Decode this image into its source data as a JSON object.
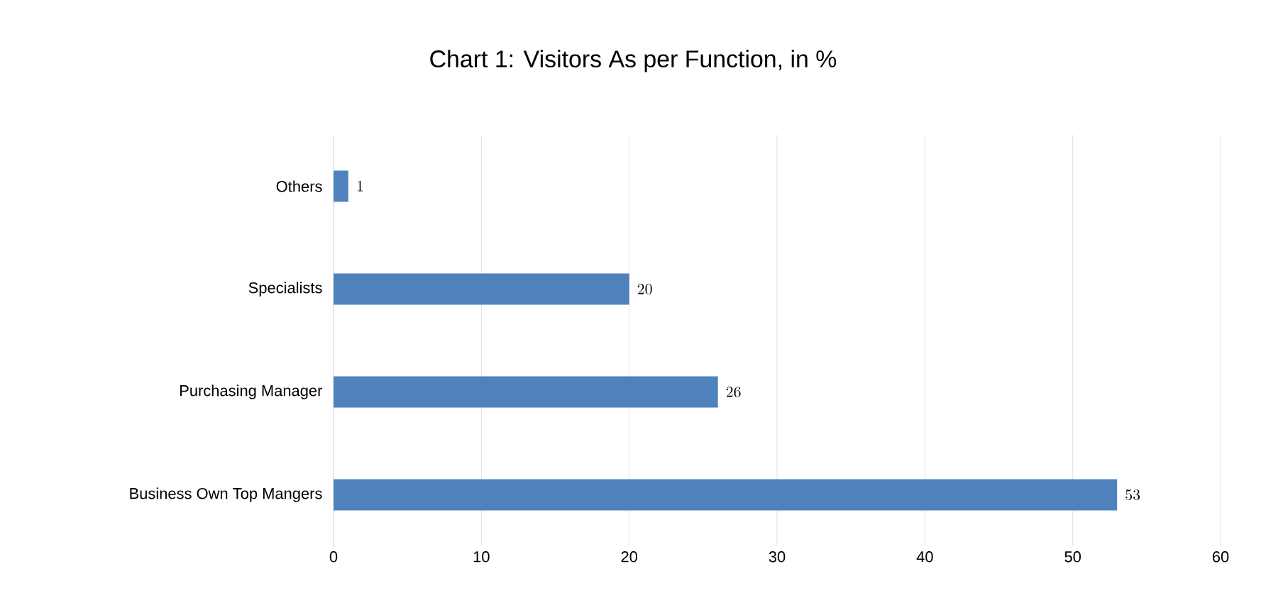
{
  "chart_data": {
    "type": "bar",
    "orientation": "horizontal",
    "title": "Chart 1: Visitors As per Function, in %",
    "categories": [
      "Others",
      "Specialists",
      "Purchasing Manager",
      "Business Own Top Mangers"
    ],
    "values": [
      1,
      20,
      26,
      53
    ],
    "color": "#4f81bd",
    "xlim": [
      0,
      60
    ],
    "xticks": [
      0,
      10,
      20,
      30,
      40,
      50,
      60
    ],
    "grid": "x",
    "data_labels": true
  }
}
